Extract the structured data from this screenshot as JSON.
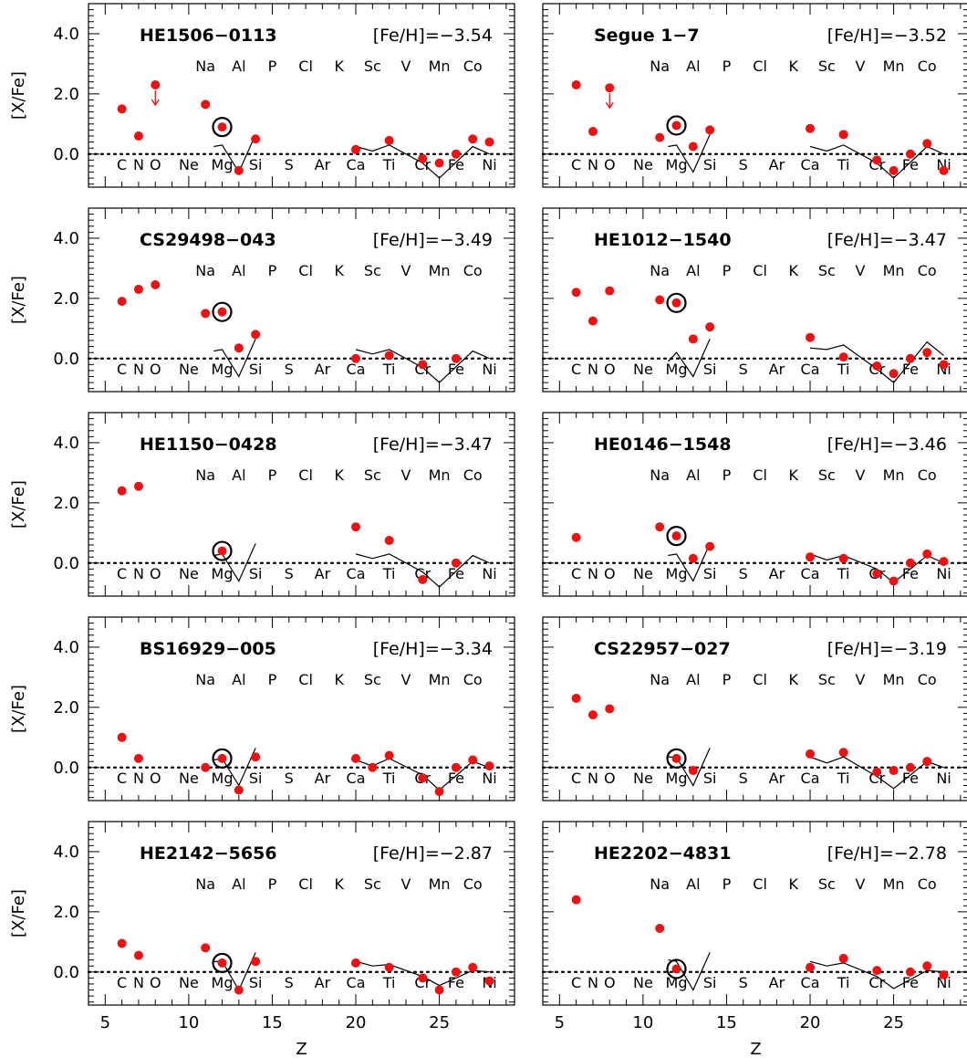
{
  "chart_data": {
    "type": "scatter",
    "xlabel": "Z",
    "ylabel": "[X/Fe]",
    "xlim": [
      4,
      29.5
    ],
    "ylim": [
      -1.1,
      5.0
    ],
    "xticks": [
      5,
      10,
      15,
      20,
      25
    ],
    "yticks": [
      0.0,
      2.0,
      4.0
    ],
    "ytick_labels": [
      "0.0",
      "2.0",
      "4.0"
    ],
    "reference_line": 0.0,
    "grid": false,
    "colors": {
      "points": "#ee1111",
      "model": "#000000",
      "circle": "#000000",
      "frame": "#000000"
    },
    "element_labels_top": [
      {
        "z": 11,
        "label": "Na"
      },
      {
        "z": 13,
        "label": "Al"
      },
      {
        "z": 15,
        "label": "P"
      },
      {
        "z": 17,
        "label": "Cl"
      },
      {
        "z": 19,
        "label": "K"
      },
      {
        "z": 21,
        "label": "Sc"
      },
      {
        "z": 23,
        "label": "V"
      },
      {
        "z": 25,
        "label": "Mn"
      },
      {
        "z": 27,
        "label": "Co"
      }
    ],
    "element_labels_bottom": [
      {
        "z": 6,
        "label": "C"
      },
      {
        "z": 7,
        "label": "N"
      },
      {
        "z": 8,
        "label": "O"
      },
      {
        "z": 10,
        "label": "Ne"
      },
      {
        "z": 12,
        "label": "Mg"
      },
      {
        "z": 14,
        "label": "Si"
      },
      {
        "z": 16,
        "label": "S"
      },
      {
        "z": 18,
        "label": "Ar"
      },
      {
        "z": 20,
        "label": "Ca"
      },
      {
        "z": 22,
        "label": "Ti"
      },
      {
        "z": 24,
        "label": "Cr"
      },
      {
        "z": 26,
        "label": "Fe"
      },
      {
        "z": 28,
        "label": "Ni"
      }
    ],
    "panels": [
      {
        "star": "HE1506−0113",
        "feh": "[Fe/H]=−3.54",
        "points": [
          [
            6,
            1.5
          ],
          [
            7,
            0.6
          ],
          [
            8,
            2.3
          ],
          [
            11,
            1.65
          ],
          [
            12,
            0.9
          ],
          [
            13,
            -0.55
          ],
          [
            14,
            0.5
          ],
          [
            20,
            0.15
          ],
          [
            22,
            0.45
          ],
          [
            24,
            -0.15
          ],
          [
            25,
            -0.3
          ],
          [
            26,
            0.0
          ],
          [
            27,
            0.5
          ],
          [
            28,
            0.4
          ]
        ],
        "upper_limits": [
          8
        ],
        "circled": 12,
        "model_lines": [
          [
            [
              11.5,
              0.25
            ],
            [
              12,
              0.3
            ],
            [
              13,
              -0.6
            ],
            [
              14,
              0.65
            ]
          ],
          [
            [
              20,
              0.25
            ],
            [
              21,
              0.1
            ],
            [
              22,
              0.3
            ],
            [
              24,
              -0.3
            ],
            [
              25,
              -0.8
            ],
            [
              27,
              0.25
            ],
            [
              28,
              0.0
            ]
          ]
        ]
      },
      {
        "star": "Segue 1−7",
        "feh": "[Fe/H]=−3.52",
        "points": [
          [
            6,
            2.3
          ],
          [
            7,
            0.75
          ],
          [
            8,
            2.2
          ],
          [
            11,
            0.55
          ],
          [
            12,
            0.95
          ],
          [
            13,
            0.25
          ],
          [
            14,
            0.8
          ],
          [
            20,
            0.85
          ],
          [
            22,
            0.65
          ],
          [
            24,
            -0.2
          ],
          [
            25,
            -0.55
          ],
          [
            26,
            0.0
          ],
          [
            27,
            0.35
          ],
          [
            28,
            -0.55
          ]
        ],
        "upper_limits": [
          8
        ],
        "circled": 12,
        "model_lines": [
          [
            [
              11.5,
              0.25
            ],
            [
              12,
              0.3
            ],
            [
              13,
              -0.6
            ],
            [
              14,
              0.65
            ]
          ],
          [
            [
              20,
              0.25
            ],
            [
              21,
              0.1
            ],
            [
              22,
              0.3
            ],
            [
              24,
              -0.3
            ],
            [
              25,
              -0.8
            ],
            [
              27,
              0.25
            ],
            [
              28,
              0.0
            ]
          ]
        ]
      },
      {
        "star": "CS29498−043",
        "feh": "[Fe/H]=−3.49",
        "points": [
          [
            6,
            1.9
          ],
          [
            7,
            2.3
          ],
          [
            8,
            2.45
          ],
          [
            11,
            1.5
          ],
          [
            12,
            1.55
          ],
          [
            13,
            0.35
          ],
          [
            14,
            0.8
          ],
          [
            20,
            0.0
          ],
          [
            22,
            0.1
          ],
          [
            24,
            -0.2
          ],
          [
            26,
            0.0
          ]
        ],
        "upper_limits": [],
        "circled": 12,
        "model_lines": [
          [
            [
              11.5,
              0.25
            ],
            [
              12,
              0.3
            ],
            [
              13,
              -0.6
            ],
            [
              14,
              0.65
            ]
          ],
          [
            [
              20,
              0.3
            ],
            [
              21,
              0.15
            ],
            [
              22,
              0.3
            ],
            [
              24,
              -0.3
            ],
            [
              25,
              -0.8
            ],
            [
              27,
              0.25
            ],
            [
              28,
              0.0
            ]
          ]
        ]
      },
      {
        "star": "HE1012−1540",
        "feh": "[Fe/H]=−3.47",
        "points": [
          [
            6,
            2.2
          ],
          [
            7,
            1.25
          ],
          [
            8,
            2.25
          ],
          [
            11,
            1.95
          ],
          [
            12,
            1.85
          ],
          [
            13,
            0.65
          ],
          [
            14,
            1.05
          ],
          [
            20,
            0.7
          ],
          [
            22,
            0.05
          ],
          [
            24,
            -0.25
          ],
          [
            25,
            -0.5
          ],
          [
            26,
            0.0
          ],
          [
            27,
            0.2
          ],
          [
            28,
            -0.2
          ]
        ],
        "upper_limits": [],
        "circled": 12,
        "model_lines": [
          [
            [
              11.5,
              -0.1
            ],
            [
              12,
              0.2
            ],
            [
              13,
              -0.6
            ],
            [
              14,
              0.65
            ]
          ],
          [
            [
              20,
              0.35
            ],
            [
              21,
              0.3
            ],
            [
              22,
              0.45
            ],
            [
              24,
              -0.35
            ],
            [
              25,
              -0.8
            ],
            [
              27,
              0.55
            ],
            [
              28,
              0.1
            ]
          ]
        ]
      },
      {
        "star": "HE1150−0428",
        "feh": "[Fe/H]=−3.47",
        "points": [
          [
            6,
            2.4
          ],
          [
            7,
            2.55
          ],
          [
            12,
            0.4
          ],
          [
            20,
            1.2
          ],
          [
            22,
            0.75
          ],
          [
            24,
            -0.55
          ],
          [
            26,
            0.0
          ]
        ],
        "upper_limits": [],
        "circled": 12,
        "model_lines": [
          [
            [
              11.5,
              0.25
            ],
            [
              12,
              0.3
            ],
            [
              13,
              -0.6
            ],
            [
              14,
              0.65
            ]
          ],
          [
            [
              20,
              0.3
            ],
            [
              21,
              0.15
            ],
            [
              22,
              0.3
            ],
            [
              24,
              -0.3
            ],
            [
              25,
              -0.8
            ],
            [
              27,
              0.25
            ],
            [
              28,
              0.0
            ]
          ]
        ]
      },
      {
        "star": "HE0146−1548",
        "feh": "[Fe/H]=−3.46",
        "points": [
          [
            6,
            0.85
          ],
          [
            11,
            1.2
          ],
          [
            12,
            0.9
          ],
          [
            13,
            0.15
          ],
          [
            14,
            0.55
          ],
          [
            20,
            0.2
          ],
          [
            22,
            0.15
          ],
          [
            24,
            -0.35
          ],
          [
            25,
            -0.6
          ],
          [
            26,
            0.0
          ],
          [
            27,
            0.3
          ],
          [
            28,
            0.05
          ]
        ],
        "upper_limits": [],
        "circled": 12,
        "model_lines": [
          [
            [
              11.5,
              0.25
            ],
            [
              12,
              0.3
            ],
            [
              13,
              -0.6
            ],
            [
              14,
              0.65
            ]
          ],
          [
            [
              20,
              0.3
            ],
            [
              21,
              0.1
            ],
            [
              22,
              0.25
            ],
            [
              24,
              -0.2
            ],
            [
              25,
              -0.65
            ],
            [
              27,
              0.25
            ],
            [
              28,
              0.0
            ]
          ]
        ]
      },
      {
        "star": "BS16929−005",
        "feh": "[Fe/H]=−3.34",
        "points": [
          [
            6,
            1.0
          ],
          [
            7,
            0.3
          ],
          [
            11,
            0.0
          ],
          [
            12,
            0.3
          ],
          [
            13,
            -0.75
          ],
          [
            14,
            0.35
          ],
          [
            20,
            0.3
          ],
          [
            21,
            0.0
          ],
          [
            22,
            0.4
          ],
          [
            24,
            -0.35
          ],
          [
            25,
            -0.8
          ],
          [
            26,
            0.0
          ],
          [
            27,
            0.25
          ],
          [
            28,
            0.05
          ]
        ],
        "upper_limits": [],
        "circled": 12,
        "model_lines": [
          [
            [
              11.5,
              0.25
            ],
            [
              12,
              0.3
            ],
            [
              13,
              -0.6
            ],
            [
              14,
              0.65
            ]
          ],
          [
            [
              20,
              0.25
            ],
            [
              21,
              0.05
            ],
            [
              22,
              0.3
            ],
            [
              24,
              -0.25
            ],
            [
              25,
              -0.75
            ],
            [
              27,
              0.2
            ],
            [
              28,
              0.0
            ]
          ]
        ]
      },
      {
        "star": "CS22957−027",
        "feh": "[Fe/H]=−3.19",
        "points": [
          [
            6,
            2.3
          ],
          [
            7,
            1.75
          ],
          [
            8,
            1.95
          ],
          [
            12,
            0.3
          ],
          [
            13,
            -0.1
          ],
          [
            20,
            0.45
          ],
          [
            22,
            0.5
          ],
          [
            24,
            -0.15
          ],
          [
            25,
            -0.1
          ],
          [
            26,
            0.0
          ],
          [
            27,
            0.2
          ]
        ],
        "upper_limits": [],
        "circled": 12,
        "model_lines": [
          [
            [
              11.5,
              0.35
            ],
            [
              12,
              0.35
            ],
            [
              13,
              -0.6
            ],
            [
              14,
              0.65
            ]
          ],
          [
            [
              20,
              0.35
            ],
            [
              21,
              0.15
            ],
            [
              22,
              0.35
            ],
            [
              24,
              -0.3
            ],
            [
              25,
              -0.7
            ],
            [
              27,
              0.2
            ],
            [
              28,
              0.0
            ]
          ]
        ]
      },
      {
        "star": "HE2142−5656",
        "feh": "[Fe/H]=−2.87",
        "points": [
          [
            6,
            0.95
          ],
          [
            7,
            0.55
          ],
          [
            11,
            0.8
          ],
          [
            12,
            0.3
          ],
          [
            13,
            -0.6
          ],
          [
            14,
            0.35
          ],
          [
            20,
            0.3
          ],
          [
            22,
            0.15
          ],
          [
            24,
            -0.2
          ],
          [
            25,
            -0.6
          ],
          [
            26,
            0.0
          ],
          [
            27,
            0.15
          ],
          [
            28,
            -0.3
          ]
        ],
        "upper_limits": [],
        "circled": 12,
        "model_lines": [
          [
            [
              11.5,
              0.35
            ],
            [
              12,
              0.35
            ],
            [
              13,
              -0.6
            ],
            [
              14,
              0.65
            ]
          ],
          [
            [
              20,
              0.35
            ],
            [
              21,
              0.2
            ],
            [
              22,
              0.25
            ],
            [
              24,
              -0.15
            ],
            [
              25,
              -0.45
            ],
            [
              27,
              0.05
            ],
            [
              28,
              0.0
            ]
          ]
        ]
      },
      {
        "star": "HE2202−4831",
        "feh": "[Fe/H]=−2.78",
        "points": [
          [
            6,
            2.4
          ],
          [
            11,
            1.45
          ],
          [
            12,
            0.1
          ],
          [
            20,
            0.15
          ],
          [
            22,
            0.45
          ],
          [
            24,
            0.05
          ],
          [
            26,
            0.0
          ],
          [
            27,
            0.2
          ],
          [
            28,
            -0.1
          ]
        ],
        "upper_limits": [],
        "circled": 12,
        "model_lines": [
          [
            [
              11.5,
              0.4
            ],
            [
              12,
              0.35
            ],
            [
              13,
              -0.6
            ],
            [
              14,
              0.65
            ]
          ],
          [
            [
              20,
              0.35
            ],
            [
              21,
              0.2
            ],
            [
              22,
              0.3
            ],
            [
              24,
              -0.15
            ],
            [
              25,
              -0.55
            ],
            [
              27,
              0.05
            ],
            [
              28,
              0.0
            ]
          ]
        ]
      }
    ]
  }
}
